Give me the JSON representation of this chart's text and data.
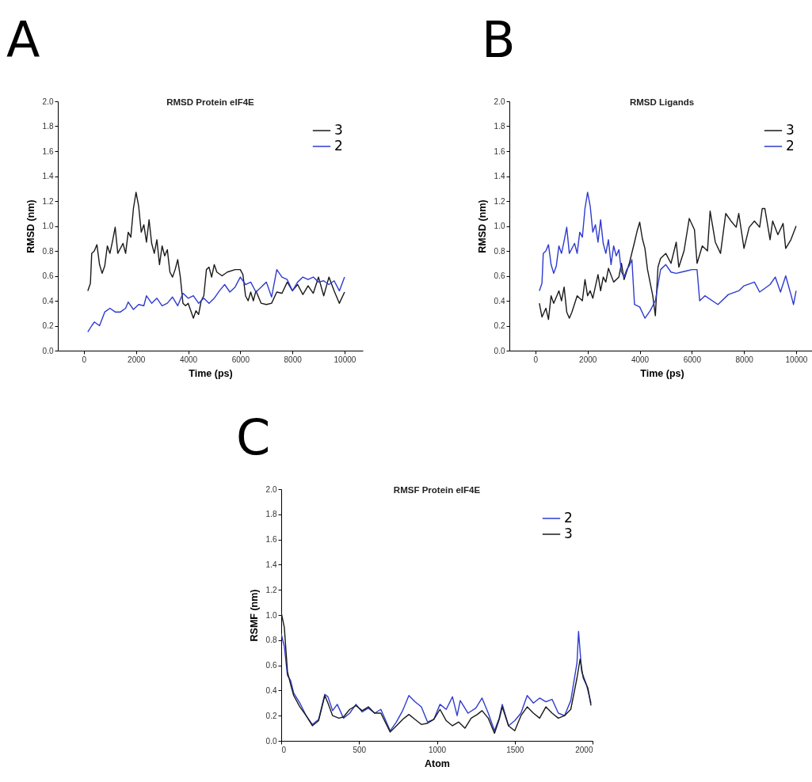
{
  "chart_data": [
    {
      "type": "line",
      "title": "RMSD Protein eIF4E",
      "xlabel": "Time (ps)",
      "ylabel": "RMSD (nm)",
      "annotations": [
        "A"
      ],
      "legend": "top right",
      "xlim": [
        -1000,
        10700
      ],
      "ylim": [
        0,
        2
      ],
      "xticks": [
        0,
        2000,
        4000,
        6000,
        8000,
        10000
      ],
      "yticks": [
        {
          "value": 0,
          "label": "0.0"
        },
        0.2,
        0.4,
        0.6,
        0.8,
        {
          "value": 1,
          "label": "1.0"
        },
        1.2,
        1.4,
        1.6,
        1.8,
        {
          "value": 2,
          "label": "2.0"
        }
      ],
      "series": [
        {
          "name": "3",
          "color": "#1a1a1a",
          "x": [
            150,
            250,
            300,
            400,
            500,
            600,
            700,
            800,
            900,
            1000,
            1100,
            1200,
            1300,
            1500,
            1600,
            1700,
            1800,
            1900,
            2000,
            2100,
            2200,
            2300,
            2400,
            2500,
            2600,
            2700,
            2800,
            2900,
            3000,
            3100,
            3200,
            3300,
            3400,
            3500,
            3600,
            3700,
            3800,
            3900,
            4000,
            4100,
            4200,
            4300,
            4400,
            4500,
            4600,
            4700,
            4800,
            4900,
            5000,
            5100,
            5300,
            5500,
            5800,
            6000,
            6100,
            6200,
            6300,
            6400,
            6500,
            6600,
            6800,
            7000,
            7200,
            7400,
            7600,
            7800,
            8000,
            8200,
            8400,
            8600,
            8800,
            9000,
            9200,
            9400,
            9600,
            9800,
            10000
          ],
          "values": [
            0.48,
            0.54,
            0.78,
            0.8,
            0.85,
            0.69,
            0.62,
            0.68,
            0.84,
            0.78,
            0.88,
            0.99,
            0.78,
            0.86,
            0.78,
            0.95,
            0.91,
            1.14,
            1.27,
            1.16,
            0.95,
            1.01,
            0.87,
            1.05,
            0.86,
            0.78,
            0.89,
            0.69,
            0.84,
            0.76,
            0.81,
            0.63,
            0.59,
            0.65,
            0.73,
            0.59,
            0.38,
            0.36,
            0.38,
            0.32,
            0.26,
            0.32,
            0.29,
            0.4,
            0.44,
            0.65,
            0.67,
            0.59,
            0.69,
            0.63,
            0.6,
            0.63,
            0.65,
            0.65,
            0.61,
            0.44,
            0.4,
            0.47,
            0.4,
            0.48,
            0.38,
            0.37,
            0.38,
            0.47,
            0.46,
            0.55,
            0.48,
            0.53,
            0.45,
            0.52,
            0.46,
            0.59,
            0.44,
            0.59,
            0.48,
            0.38,
            0.47
          ]
        },
        {
          "name": "2",
          "color": "#2e3bd0",
          "x": [
            150,
            300,
            400,
            600,
            800,
            1000,
            1200,
            1400,
            1600,
            1700,
            1900,
            2100,
            2300,
            2400,
            2600,
            2800,
            3000,
            3200,
            3400,
            3600,
            3800,
            4000,
            4200,
            4400,
            4600,
            4800,
            5000,
            5200,
            5400,
            5600,
            5800,
            6000,
            6200,
            6400,
            6600,
            6800,
            7000,
            7200,
            7400,
            7600,
            7800,
            8000,
            8200,
            8400,
            8600,
            8800,
            9000,
            9200,
            9400,
            9600,
            9800,
            10000
          ],
          "values": [
            0.15,
            0.2,
            0.23,
            0.2,
            0.31,
            0.34,
            0.31,
            0.31,
            0.34,
            0.39,
            0.33,
            0.37,
            0.36,
            0.44,
            0.38,
            0.42,
            0.36,
            0.38,
            0.43,
            0.36,
            0.46,
            0.42,
            0.44,
            0.38,
            0.42,
            0.38,
            0.42,
            0.48,
            0.53,
            0.47,
            0.51,
            0.59,
            0.53,
            0.55,
            0.47,
            0.51,
            0.55,
            0.43,
            0.65,
            0.59,
            0.57,
            0.48,
            0.55,
            0.59,
            0.57,
            0.59,
            0.55,
            0.56,
            0.53,
            0.56,
            0.48,
            0.59
          ]
        }
      ]
    },
    {
      "type": "line",
      "title": "RMSD Ligands",
      "xlabel": "Time (ps)",
      "ylabel": "RMSD (nm)",
      "annotations": [
        "B"
      ],
      "legend": "top right",
      "xlim": [
        -1000,
        10700
      ],
      "ylim": [
        0,
        2
      ],
      "xticks": [
        0,
        2000,
        4000,
        6000,
        8000,
        10000
      ],
      "yticks": [
        {
          "value": 0,
          "label": "0.0"
        },
        0.2,
        0.4,
        0.6,
        0.8,
        {
          "value": 1,
          "label": "1.0"
        },
        1.2,
        1.4,
        1.6,
        1.8,
        {
          "value": 2,
          "label": "2.0"
        }
      ],
      "series": [
        {
          "name": "3",
          "color": "#1a1a1a",
          "x": [
            150,
            250,
            400,
            500,
            600,
            700,
            900,
            1000,
            1100,
            1200,
            1300,
            1400,
            1600,
            1800,
            1900,
            2000,
            2100,
            2200,
            2400,
            2500,
            2600,
            2700,
            2800,
            3000,
            3200,
            3300,
            3400,
            3600,
            3800,
            3900,
            4000,
            4100,
            4200,
            4300,
            4500,
            4600,
            4700,
            4800,
            5000,
            5200,
            5400,
            5500,
            5700,
            5900,
            6100,
            6200,
            6400,
            6600,
            6700,
            6900,
            7100,
            7300,
            7500,
            7700,
            7800,
            8000,
            8200,
            8400,
            8600,
            8700,
            8800,
            9000,
            9100,
            9300,
            9500,
            9600,
            9800,
            10000
          ],
          "values": [
            0.38,
            0.27,
            0.34,
            0.25,
            0.44,
            0.38,
            0.48,
            0.4,
            0.51,
            0.31,
            0.26,
            0.31,
            0.44,
            0.4,
            0.57,
            0.44,
            0.48,
            0.42,
            0.61,
            0.48,
            0.59,
            0.55,
            0.66,
            0.55,
            0.59,
            0.7,
            0.57,
            0.7,
            0.87,
            0.96,
            1.03,
            0.9,
            0.82,
            0.65,
            0.44,
            0.28,
            0.67,
            0.74,
            0.78,
            0.7,
            0.87,
            0.67,
            0.8,
            1.06,
            0.97,
            0.7,
            0.84,
            0.8,
            1.12,
            0.87,
            0.78,
            1.1,
            1.04,
            0.99,
            1.1,
            0.82,
            0.99,
            1.04,
            0.99,
            1.14,
            1.14,
            0.89,
            1.04,
            0.93,
            1.02,
            0.82,
            0.89,
            1.0
          ]
        },
        {
          "name": "2",
          "color": "#2e3bd0",
          "x": [
            150,
            250,
            300,
            400,
            500,
            600,
            700,
            800,
            900,
            1000,
            1100,
            1200,
            1300,
            1500,
            1600,
            1700,
            1800,
            1900,
            2000,
            2100,
            2200,
            2300,
            2400,
            2500,
            2600,
            2700,
            2800,
            2900,
            3000,
            3100,
            3200,
            3300,
            3400,
            3500,
            3600,
            3700,
            3800,
            4000,
            4200,
            4400,
            4600,
            4800,
            5000,
            5200,
            5400,
            5600,
            5800,
            6000,
            6200,
            6300,
            6500,
            7000,
            7400,
            7800,
            8000,
            8400,
            8600,
            9000,
            9200,
            9400,
            9600,
            9800,
            9900,
            10000
          ],
          "values": [
            0.48,
            0.54,
            0.78,
            0.8,
            0.85,
            0.69,
            0.62,
            0.68,
            0.84,
            0.78,
            0.88,
            0.99,
            0.78,
            0.86,
            0.78,
            0.95,
            0.91,
            1.14,
            1.27,
            1.16,
            0.95,
            1.01,
            0.87,
            1.05,
            0.86,
            0.78,
            0.89,
            0.69,
            0.84,
            0.76,
            0.81,
            0.63,
            0.59,
            0.65,
            0.68,
            0.73,
            0.37,
            0.35,
            0.26,
            0.32,
            0.4,
            0.65,
            0.69,
            0.63,
            0.62,
            0.63,
            0.64,
            0.65,
            0.65,
            0.4,
            0.44,
            0.37,
            0.45,
            0.48,
            0.52,
            0.55,
            0.47,
            0.53,
            0.59,
            0.47,
            0.6,
            0.45,
            0.37,
            0.48
          ]
        }
      ]
    },
    {
      "type": "line",
      "title": "RMSF Protein eIF4E",
      "xlabel": "Atom",
      "ylabel": "RSMF (nm)",
      "annotations": [
        "C"
      ],
      "legend": "top right",
      "xlim": [
        0,
        2000
      ],
      "ylim": [
        0,
        2
      ],
      "xticks": [
        0,
        500,
        1000,
        1500,
        2000
      ],
      "yticks": [
        {
          "value": 0,
          "label": "0.0"
        },
        0.2,
        0.4,
        0.6,
        0.8,
        {
          "value": 1,
          "label": "1.0"
        },
        1.2,
        1.4,
        1.6,
        1.8,
        {
          "value": 2,
          "label": "2.0"
        }
      ],
      "series": [
        {
          "name": "2",
          "color": "#2e3bd0",
          "x": [
            0,
            20,
            40,
            60,
            80,
            120,
            160,
            200,
            240,
            280,
            300,
            330,
            360,
            400,
            440,
            480,
            520,
            560,
            600,
            640,
            700,
            740,
            780,
            820,
            860,
            900,
            940,
            980,
            1020,
            1060,
            1100,
            1130,
            1150,
            1200,
            1250,
            1290,
            1330,
            1370,
            1400,
            1420,
            1460,
            1500,
            1540,
            1580,
            1620,
            1660,
            1700,
            1740,
            1780,
            1820,
            1860,
            1900,
            1910,
            1930,
            1960,
            1990
          ],
          "values": [
            0.85,
            0.75,
            0.52,
            0.48,
            0.38,
            0.3,
            0.2,
            0.13,
            0.17,
            0.37,
            0.35,
            0.24,
            0.29,
            0.18,
            0.22,
            0.29,
            0.23,
            0.26,
            0.22,
            0.25,
            0.08,
            0.15,
            0.24,
            0.36,
            0.31,
            0.27,
            0.15,
            0.17,
            0.29,
            0.25,
            0.35,
            0.2,
            0.32,
            0.22,
            0.26,
            0.34,
            0.22,
            0.08,
            0.18,
            0.29,
            0.12,
            0.16,
            0.22,
            0.36,
            0.3,
            0.34,
            0.31,
            0.33,
            0.22,
            0.2,
            0.32,
            0.62,
            0.87,
            0.55,
            0.45,
            0.3
          ]
        },
        {
          "name": "3",
          "color": "#1a1a1a",
          "x": [
            0,
            20,
            40,
            60,
            80,
            120,
            160,
            200,
            240,
            280,
            300,
            330,
            370,
            400,
            440,
            480,
            520,
            560,
            600,
            640,
            700,
            740,
            780,
            820,
            860,
            900,
            940,
            980,
            1020,
            1060,
            1100,
            1140,
            1180,
            1220,
            1260,
            1290,
            1330,
            1370,
            1400,
            1420,
            1460,
            1500,
            1540,
            1580,
            1620,
            1660,
            1700,
            1740,
            1780,
            1820,
            1860,
            1900,
            1920,
            1940,
            1970,
            1990
          ],
          "values": [
            1.02,
            0.9,
            0.55,
            0.45,
            0.36,
            0.27,
            0.2,
            0.12,
            0.16,
            0.36,
            0.3,
            0.2,
            0.18,
            0.19,
            0.25,
            0.28,
            0.24,
            0.27,
            0.22,
            0.22,
            0.07,
            0.12,
            0.17,
            0.21,
            0.17,
            0.13,
            0.14,
            0.17,
            0.25,
            0.16,
            0.12,
            0.15,
            0.1,
            0.18,
            0.21,
            0.24,
            0.18,
            0.06,
            0.17,
            0.27,
            0.12,
            0.08,
            0.2,
            0.27,
            0.22,
            0.18,
            0.27,
            0.22,
            0.18,
            0.2,
            0.25,
            0.5,
            0.65,
            0.5,
            0.42,
            0.28
          ]
        }
      ]
    }
  ]
}
